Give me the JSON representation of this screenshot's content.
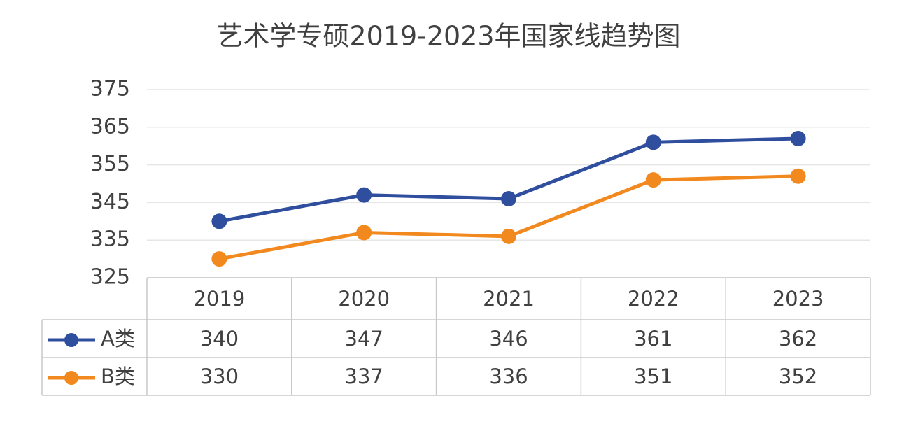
{
  "chart_data": {
    "type": "line",
    "title": "艺术学专硕2019-2023年国家线趋势图",
    "categories": [
      "2019",
      "2020",
      "2021",
      "2022",
      "2023"
    ],
    "series": [
      {
        "name": "A类",
        "color": "#2f4f9e",
        "values": [
          340,
          347,
          346,
          361,
          362
        ]
      },
      {
        "name": "B类",
        "color": "#f2891f",
        "values": [
          330,
          337,
          336,
          351,
          352
        ]
      }
    ],
    "ylim": [
      325,
      375
    ],
    "yticks": [
      325,
      335,
      345,
      355,
      365,
      375
    ],
    "grid": true,
    "data_table": true
  }
}
